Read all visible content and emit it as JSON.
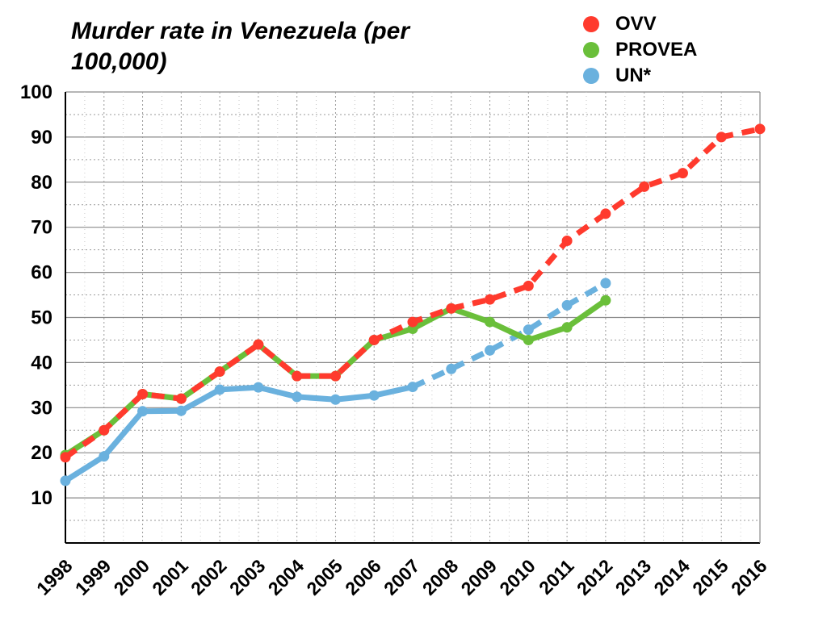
{
  "chart_data": {
    "type": "line",
    "title": "Murder rate in Venezuela (per 100,000)",
    "xlabel": "",
    "ylabel": "",
    "ylim": [
      0,
      100
    ],
    "yticks": [
      10,
      20,
      30,
      40,
      50,
      60,
      70,
      80,
      90,
      100
    ],
    "grid": true,
    "legend_position": "top-right",
    "x": [
      "1998",
      "1999",
      "2000",
      "2001",
      "2002",
      "2003",
      "2004",
      "2005",
      "2006",
      "2007",
      "2008",
      "2009",
      "2010",
      "2011",
      "2012",
      "2013",
      "2014",
      "2015",
      "2016"
    ],
    "series": [
      {
        "name": "PROVEA",
        "color": "#6abf3a",
        "style": "solid",
        "values": [
          19.5,
          25,
          33,
          32,
          38,
          44,
          37,
          37,
          45,
          47.5,
          52,
          49,
          45,
          47.8,
          53.8,
          null,
          null,
          null,
          null
        ]
      },
      {
        "name": "OVV",
        "color": "#ff3a2d",
        "style": "dashed",
        "values": [
          19,
          25,
          33,
          32,
          38,
          44,
          37,
          37,
          45,
          49,
          52,
          54,
          57,
          67,
          73,
          79,
          82,
          90,
          91.8
        ]
      },
      {
        "name": "UN*",
        "color": "#6ab1de",
        "style": "solid-then-dashed",
        "dash_from": "2007",
        "values": [
          13.8,
          19.2,
          29.2,
          29.3,
          34,
          34.5,
          32.4,
          31.8,
          32.7,
          34.6,
          38.6,
          42.7,
          47.3,
          52.7,
          57.6,
          null,
          null,
          null,
          null
        ]
      }
    ],
    "legend": [
      {
        "label": "OVV",
        "color": "#ff3a2d"
      },
      {
        "label": "PROVEA",
        "color": "#6abf3a"
      },
      {
        "label": "UN*",
        "color": "#6ab1de"
      }
    ]
  }
}
